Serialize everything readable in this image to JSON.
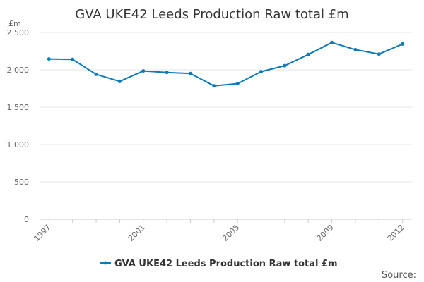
{
  "chart_data": {
    "type": "line",
    "title": "GVA UKE42 Leeds Production Raw total £m",
    "ylabel": "£m",
    "xlabel": "",
    "x": [
      1997,
      1998,
      1999,
      2000,
      2001,
      2002,
      2003,
      2004,
      2005,
      2006,
      2007,
      2008,
      2009,
      2010,
      2011,
      2012
    ],
    "series": [
      {
        "name": "GVA UKE42 Leeds Production Raw total £m",
        "color": "#0a7ab8",
        "values": [
          2145,
          2140,
          1940,
          1845,
          1985,
          1965,
          1950,
          1785,
          1815,
          1975,
          2055,
          2205,
          2365,
          2270,
          2210,
          2345
        ]
      }
    ],
    "xticks": [
      1997,
      2001,
      2005,
      2009,
      2012
    ],
    "xtick_labels": [
      "1997",
      "2001",
      "2005",
      "2009",
      "2012"
    ],
    "yticks": [
      0,
      500,
      1000,
      1500,
      2000,
      2500
    ],
    "ytick_labels": [
      "0",
      "500",
      "1 000",
      "1 500",
      "2 000",
      "2 500"
    ],
    "ylim": [
      0,
      2500
    ],
    "grid": true,
    "legend_position": "bottom",
    "source_label": "Source:"
  }
}
